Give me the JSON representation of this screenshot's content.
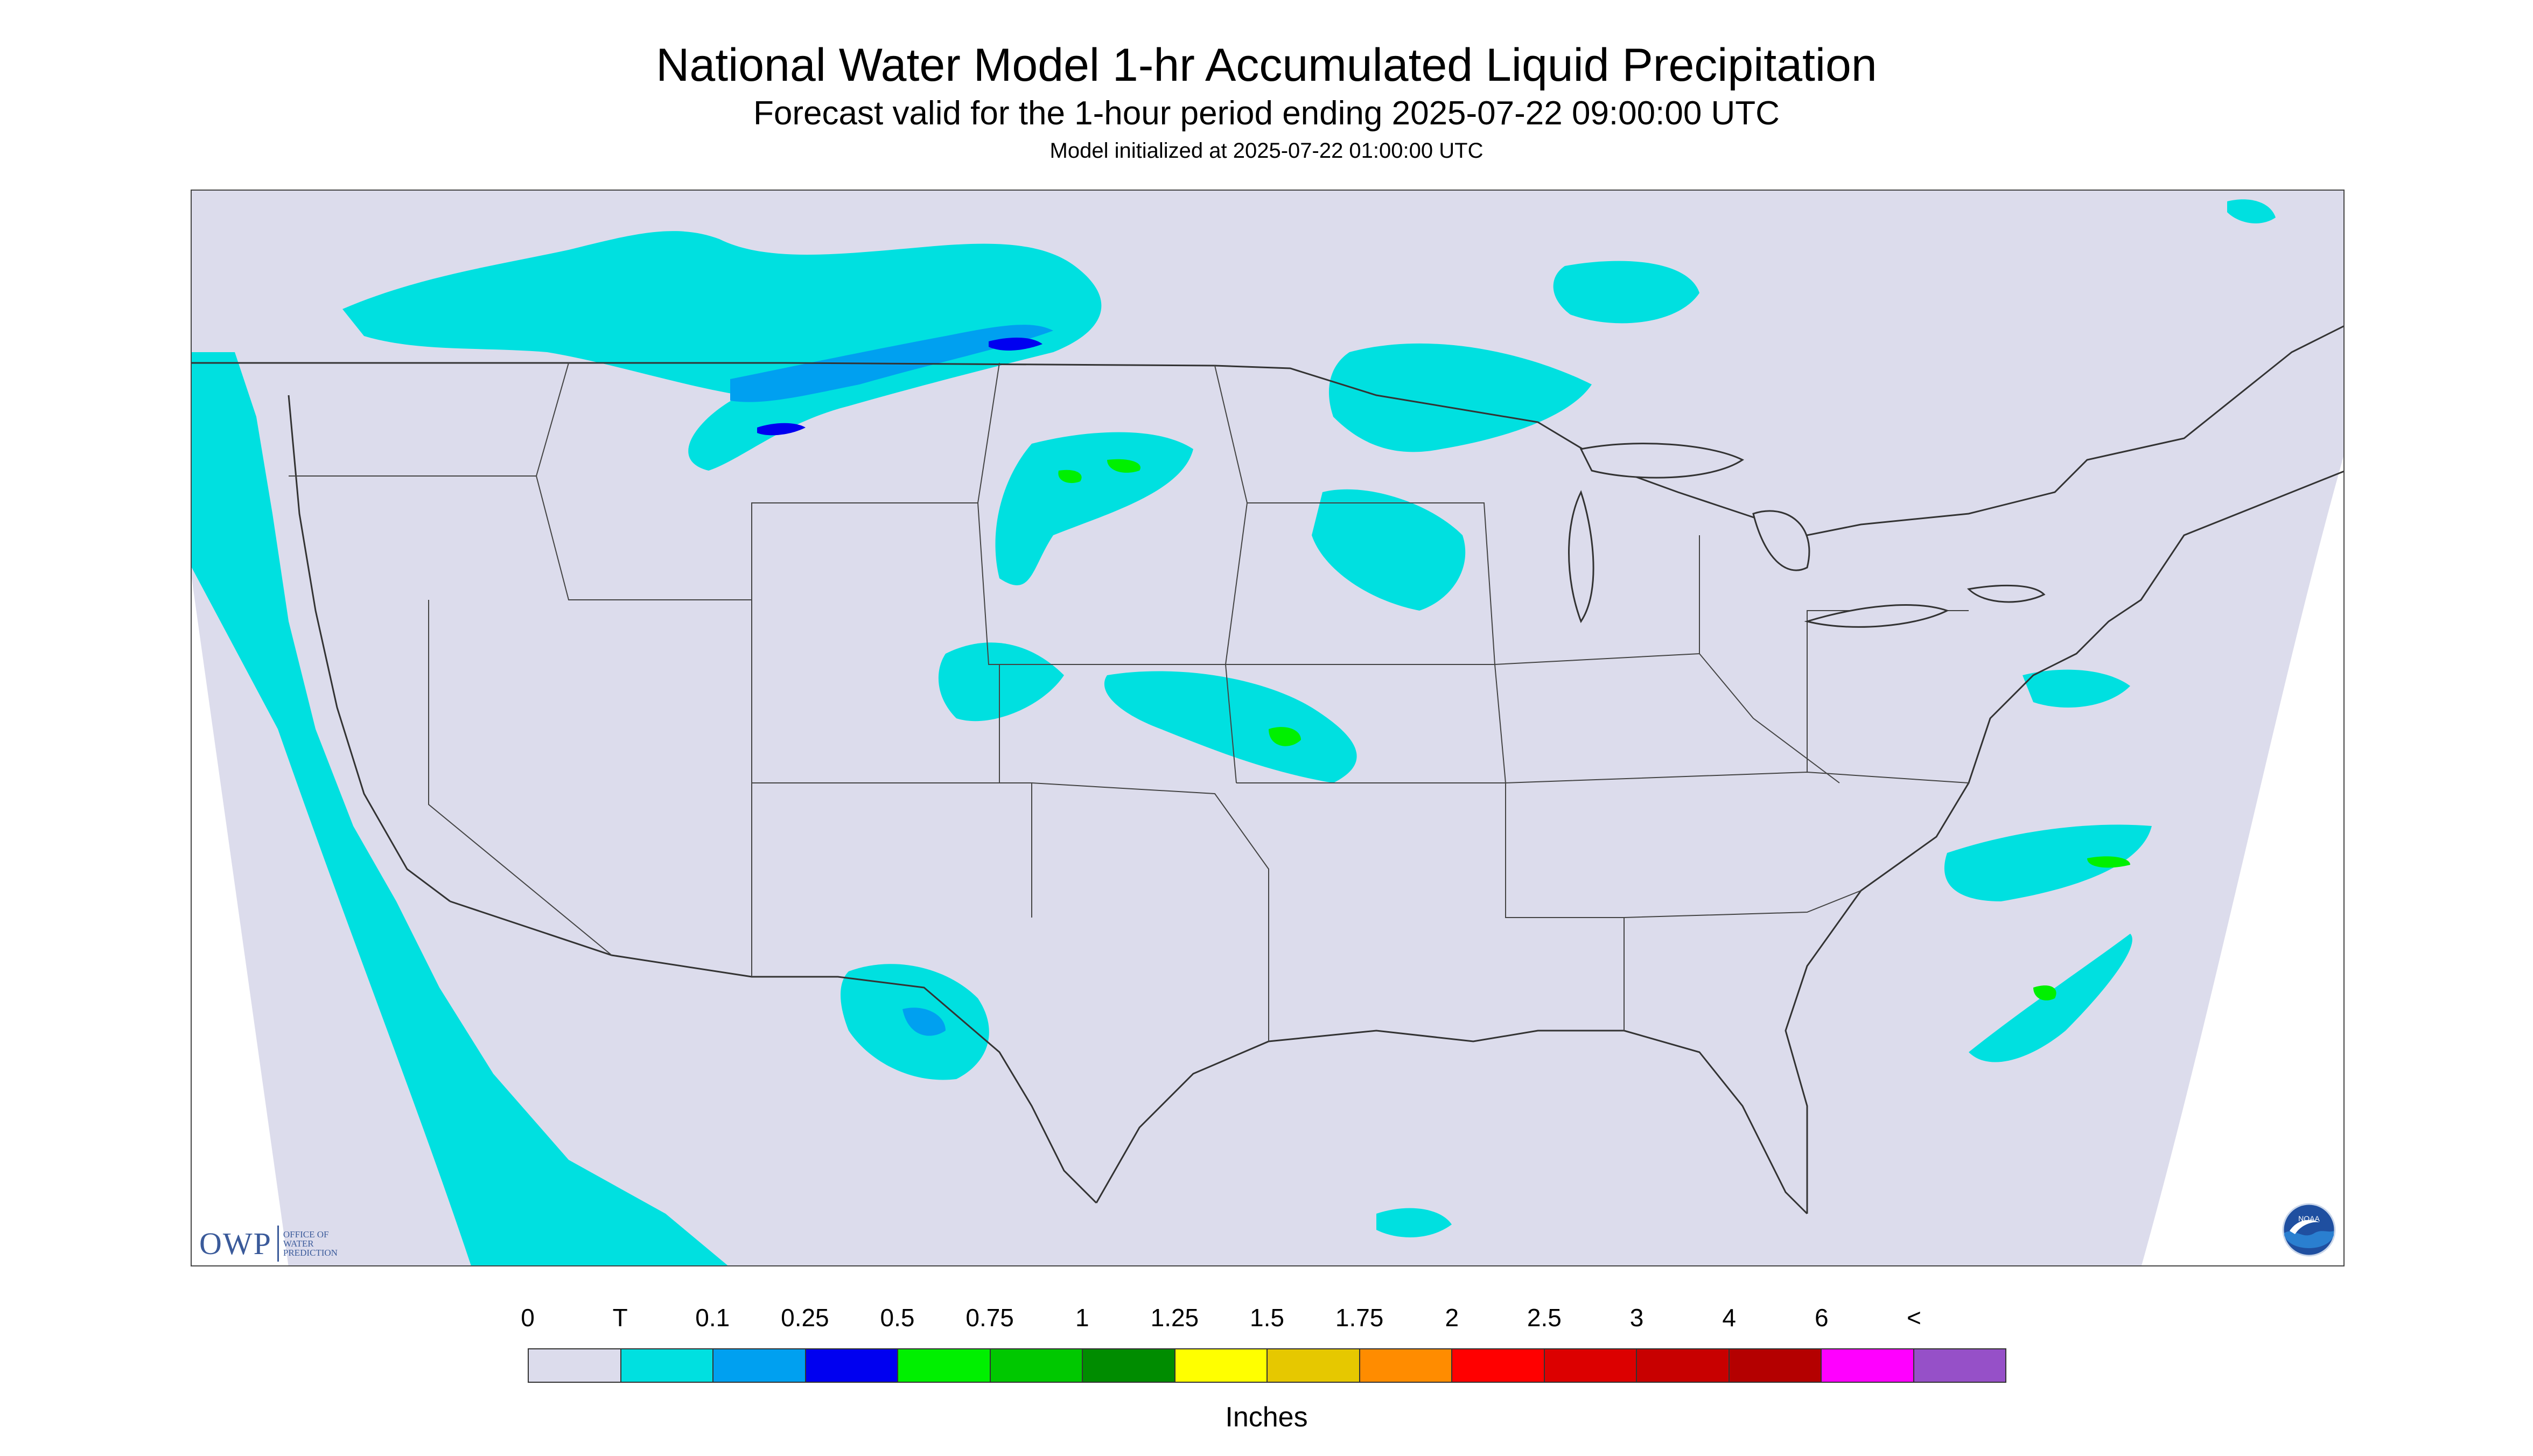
{
  "header": {
    "title": "National Water Model 1-hr Accumulated Liquid Precipitation",
    "subtitle": "Forecast valid for the 1-hour period ending 2025-07-22 09:00:00 UTC",
    "init": "Model initialized at 2025-07-22 01:00:00 UTC"
  },
  "map": {
    "region": "Continental United States",
    "background_color": "#dcdcec",
    "outside_domain_color": "#ffffff",
    "boundary_color": "#333333",
    "precip_colors": {
      "trace": "#00e0e0",
      "light": "#00a0f0",
      "moderate": "#0000f0",
      "heavy_green": "#00f000"
    }
  },
  "logos": {
    "owp_letters": "OWP",
    "owp_text": "OFFICE OF\nWATER\nPREDICTION",
    "noaa": "NOAA"
  },
  "legend": {
    "labels": [
      "0",
      "T",
      "0.1",
      "0.25",
      "0.5",
      "0.75",
      "1",
      "1.25",
      "1.5",
      "1.75",
      "2",
      "2.5",
      "3",
      "4",
      "6",
      "<"
    ],
    "colors": [
      "#dcdcec",
      "#00e0e0",
      "#00a0f0",
      "#0000f0",
      "#00f000",
      "#00c800",
      "#008c00",
      "#ffff00",
      "#e6c800",
      "#ff8c00",
      "#ff0000",
      "#dc0000",
      "#c80000",
      "#b40000",
      "#ff00ff",
      "#9650c8"
    ],
    "units": "Inches"
  }
}
